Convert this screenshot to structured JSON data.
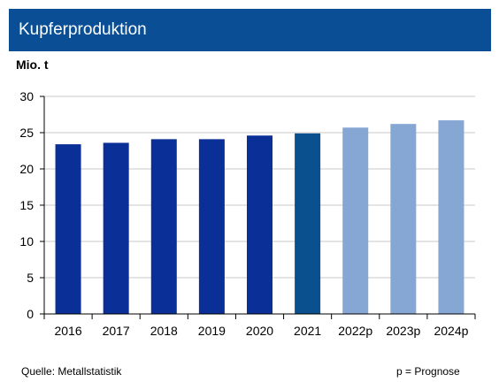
{
  "header": {
    "title": "Kupferproduktion"
  },
  "unit_label": "Mio. t",
  "footer": {
    "source": "Quelle: Metallstatistik",
    "legend_note": "p = Prognose"
  },
  "chart_data": {
    "type": "bar",
    "title": "Kupferproduktion",
    "ylabel": "Mio. t",
    "xlabel": "",
    "categories": [
      "2016",
      "2017",
      "2018",
      "2019",
      "2020",
      "2021",
      "2022p",
      "2023p",
      "2024p"
    ],
    "values": [
      23.4,
      23.6,
      24.1,
      24.1,
      24.6,
      24.9,
      25.7,
      26.2,
      26.7
    ],
    "colors": [
      "#0a2f96",
      "#0a2f96",
      "#0a2f96",
      "#0a2f96",
      "#0a2f96",
      "#0a4f8e",
      "#86a6d3",
      "#86a6d3",
      "#86a6d3"
    ],
    "ylim": [
      0,
      30
    ],
    "yticks": [
      0,
      5,
      10,
      15,
      20,
      25,
      30
    ],
    "grid": true,
    "gridColor": "#c8c8c8"
  }
}
